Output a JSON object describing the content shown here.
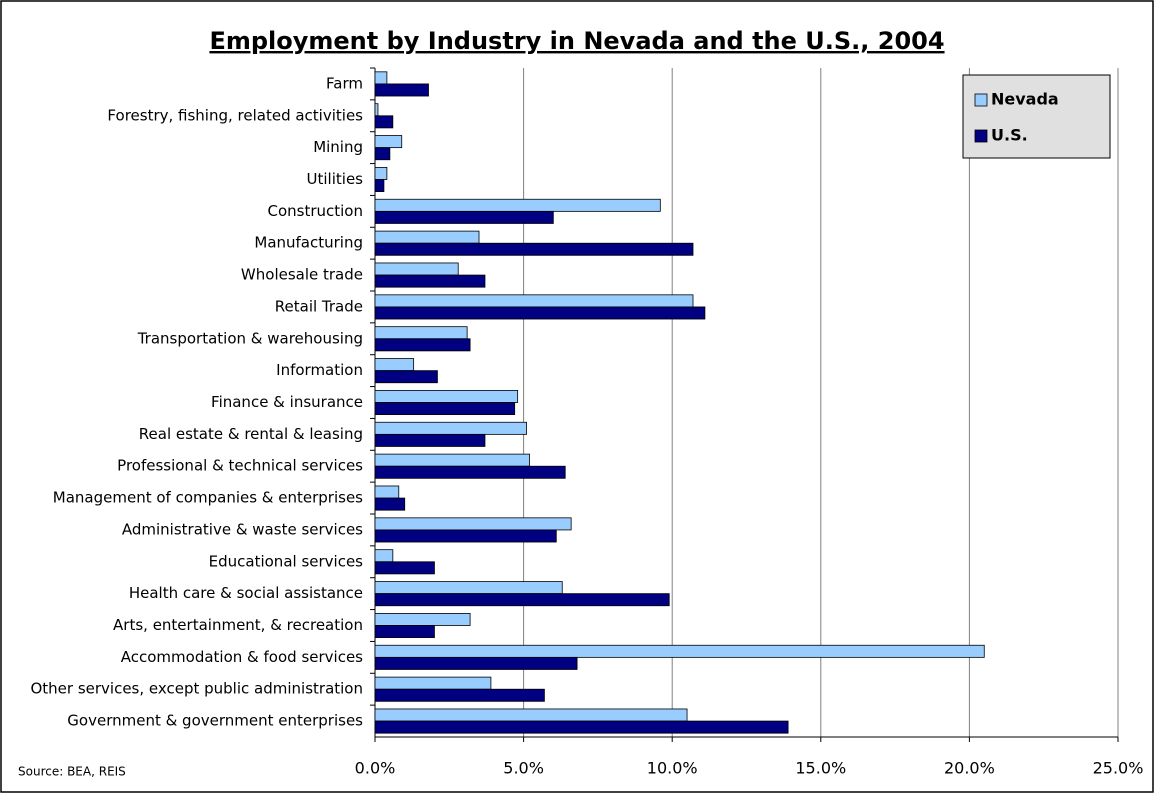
{
  "chart_data": {
    "type": "hbar",
    "title": "Employment by Industry in Nevada and the U.S., 2004",
    "source": "Source: BEA, REIS",
    "categories": [
      "Farm",
      "Forestry, fishing, related activities",
      "Mining",
      "Utilities",
      "Construction",
      "Manufacturing",
      "Wholesale trade",
      "Retail Trade",
      "Transportation & warehousing",
      "Information",
      "Finance & insurance",
      "Real estate & rental & leasing",
      "Professional & technical services",
      "Management of companies & enterprises",
      "Administrative & waste services",
      "Educational services",
      "Health care & social assistance",
      "Arts, entertainment, & recreation",
      "Accommodation & food services",
      "Other services, except public administration",
      "Government & government enterprises"
    ],
    "series": [
      {
        "name": "Nevada",
        "color": "#99ccff",
        "values": [
          0.4,
          0.1,
          0.9,
          0.4,
          9.6,
          3.5,
          2.8,
          10.7,
          3.1,
          1.3,
          4.8,
          5.1,
          5.2,
          0.8,
          6.6,
          0.6,
          6.3,
          3.2,
          20.5,
          3.9,
          10.5
        ]
      },
      {
        "name": "U.S.",
        "color": "#000080",
        "values": [
          1.8,
          0.6,
          0.5,
          0.3,
          6.0,
          10.7,
          3.7,
          11.1,
          3.2,
          2.1,
          4.7,
          3.7,
          6.4,
          1.0,
          6.1,
          2.0,
          9.9,
          2.0,
          6.8,
          5.7,
          13.9
        ]
      }
    ],
    "xlim": [
      0,
      25
    ],
    "xticks": [
      {
        "value": 0,
        "label": "0.0%"
      },
      {
        "value": 5,
        "label": "5.0%"
      },
      {
        "value": 10,
        "label": "10.0%"
      },
      {
        "value": 15,
        "label": "15.0%"
      },
      {
        "value": 20,
        "label": "20.0%"
      },
      {
        "value": 25,
        "label": "25.0%"
      }
    ],
    "grid": true,
    "legend": "upper right"
  }
}
